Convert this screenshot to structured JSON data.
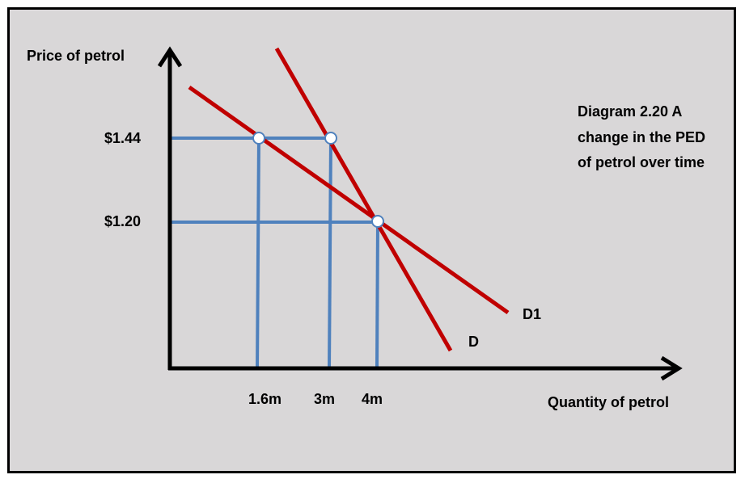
{
  "chart_data": {
    "type": "diagram",
    "ylabel": "Price of petrol",
    "xlabel": "Quantity of petrol",
    "y_ticks": [
      "$1.44",
      "$1.20"
    ],
    "x_ticks": [
      "1.6m",
      "3m",
      "4m"
    ],
    "annotation": [
      "Diagram 2.20 A",
      "change in the PED",
      "of petrol over time"
    ],
    "curves": [
      {
        "name": "D",
        "description": "steeper (more inelastic) demand curve",
        "color": "#c00000"
      },
      {
        "name": "D1",
        "description": "flatter (more elastic) demand curve",
        "color": "#c00000"
      }
    ],
    "points": [
      {
        "price": "$1.44",
        "quantity": "1.6m",
        "curve": "D1"
      },
      {
        "price": "$1.44",
        "quantity": "3m",
        "curve": "D"
      },
      {
        "price": "$1.20",
        "quantity": "4m",
        "curve": "D and D1"
      }
    ],
    "guide_color": "#4f81bd",
    "axis_color": "#000000"
  }
}
